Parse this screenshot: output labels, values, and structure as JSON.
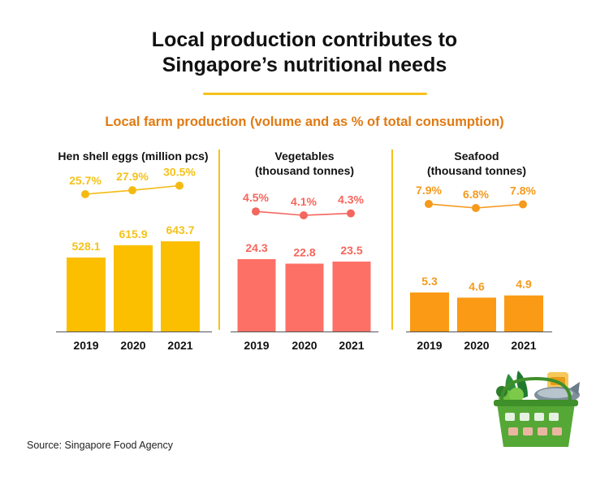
{
  "title_line1": "Local production contributes to",
  "title_line2": "Singapore’s nutritional needs",
  "subtitle": "Local farm production (volume and as % of total consumption)",
  "source": "Source: Singapore Food Agency",
  "chart_data": [
    {
      "type": "bar",
      "title_line1": "Hen shell eggs (million pcs)",
      "title_line2": "",
      "categories": [
        "2019",
        "2020",
        "2021"
      ],
      "values": [
        528.1,
        615.9,
        643.7
      ],
      "value_labels": [
        "528.1",
        "615.9",
        "643.7"
      ],
      "share_percent": [
        25.7,
        27.9,
        30.5
      ],
      "share_labels": [
        "25.7%",
        "27.9%",
        "30.5%"
      ],
      "bar_color": "#fbbf00",
      "line_color": "#f5ba12",
      "label_color": "#f6c21a"
    },
    {
      "type": "bar",
      "title_line1": "Vegetables",
      "title_line2": "(thousand tonnes)",
      "categories": [
        "2019",
        "2020",
        "2021"
      ],
      "values": [
        24.3,
        22.8,
        23.5
      ],
      "value_labels": [
        "24.3",
        "22.8",
        "23.5"
      ],
      "share_percent": [
        4.5,
        4.1,
        4.3
      ],
      "share_labels": [
        "4.5%",
        "4.1%",
        "4.3%"
      ],
      "bar_color": "#fd7066",
      "line_color": "#f4665e",
      "label_color": "#f5665d"
    },
    {
      "type": "bar",
      "title_line1": "Seafood",
      "title_line2": "(thousand tonnes)",
      "categories": [
        "2019",
        "2020",
        "2021"
      ],
      "values": [
        5.3,
        4.6,
        4.9
      ],
      "value_labels": [
        "5.3",
        "4.6",
        "4.9"
      ],
      "share_percent": [
        7.9,
        6.8,
        7.8
      ],
      "share_labels": [
        "7.9%",
        "6.8%",
        "7.8%"
      ],
      "bar_color": "#fb9a14",
      "line_color": "#f59a1d",
      "label_color": "#f59a1d"
    }
  ]
}
